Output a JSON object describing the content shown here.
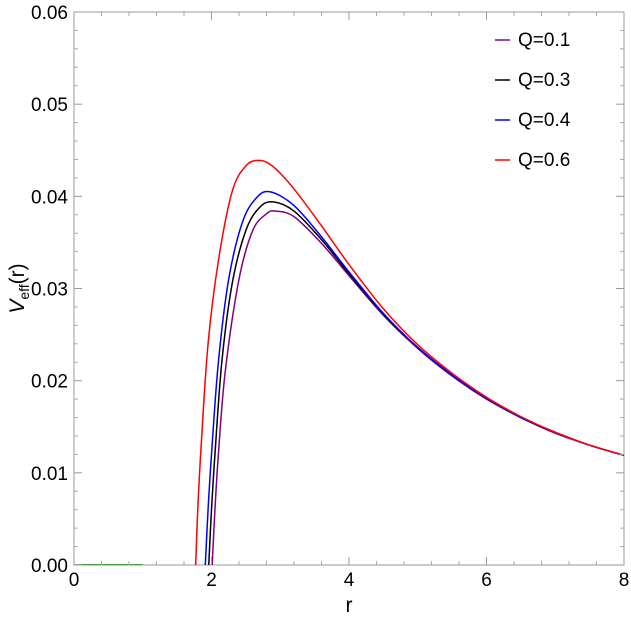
{
  "chart_data": {
    "type": "line",
    "xlabel": "r",
    "ylabel": {
      "main": "V",
      "sub": "eff",
      "arg": "(r)"
    },
    "xlim": [
      0,
      8
    ],
    "ylim": [
      0,
      0.06
    ],
    "xticks": [
      "0",
      "2",
      "4",
      "6",
      "8"
    ],
    "yticks": [
      "0.00",
      "0.01",
      "0.02",
      "0.03",
      "0.04",
      "0.05",
      "0.06"
    ],
    "grid": false,
    "legend_position": "top-right",
    "series": [
      {
        "name": "Q=0.1",
        "color": "#800080",
        "x": [
          2.01,
          2.05,
          2.1,
          2.2,
          2.4,
          2.6,
          2.8,
          2.93,
          3.2,
          3.6,
          4.0,
          4.5,
          5.0,
          5.5,
          6.0,
          6.5,
          7.0,
          7.5,
          8.0
        ],
        "y": [
          0.0,
          0.006,
          0.012,
          0.021,
          0.031,
          0.0363,
          0.0381,
          0.0384,
          0.0378,
          0.0349,
          0.0314,
          0.0271,
          0.0235,
          0.0205,
          0.018,
          0.016,
          0.0143,
          0.013,
          0.0119
        ]
      },
      {
        "name": "Q=0.3",
        "color": "#000000",
        "x": [
          1.96,
          2.0,
          2.05,
          2.15,
          2.3,
          2.5,
          2.7,
          2.9,
          3.2,
          3.6,
          4.0,
          4.5,
          5.0,
          5.5,
          6.0,
          6.5,
          7.0,
          7.5,
          8.0
        ],
        "y": [
          0.0,
          0.006,
          0.012,
          0.022,
          0.0305,
          0.0363,
          0.0388,
          0.0394,
          0.0384,
          0.0353,
          0.0316,
          0.0272,
          0.0236,
          0.0206,
          0.0181,
          0.016,
          0.0144,
          0.013,
          0.0119
        ]
      },
      {
        "name": "Q=0.4",
        "color": "#0000ff",
        "x": [
          1.91,
          1.95,
          2.0,
          2.1,
          2.25,
          2.45,
          2.65,
          2.85,
          3.2,
          3.6,
          4.0,
          4.5,
          5.0,
          5.5,
          6.0,
          6.5,
          7.0,
          7.5,
          8.0
        ],
        "y": [
          0.0,
          0.006,
          0.012,
          0.022,
          0.031,
          0.0372,
          0.0398,
          0.0405,
          0.039,
          0.0356,
          0.0318,
          0.0273,
          0.0236,
          0.0206,
          0.0181,
          0.016,
          0.0144,
          0.013,
          0.0119
        ]
      },
      {
        "name": "Q=0.6",
        "color": "#ff0000",
        "x": [
          1.77,
          1.8,
          1.85,
          1.95,
          2.1,
          2.3,
          2.5,
          2.7,
          2.9,
          3.2,
          3.6,
          4.0,
          4.5,
          5.0,
          5.5,
          6.0,
          6.5,
          7.0,
          7.5,
          8.0
        ],
        "y": [
          0.0,
          0.006,
          0.013,
          0.024,
          0.033,
          0.0405,
          0.0433,
          0.0439,
          0.0432,
          0.0408,
          0.0368,
          0.0326,
          0.0278,
          0.0239,
          0.0208,
          0.0182,
          0.0161,
          0.0144,
          0.013,
          0.0119
        ]
      },
      {
        "name": "",
        "color": "#008000",
        "x": [
          0.0,
          1.0
        ],
        "y": [
          0.0,
          0.0
        ]
      }
    ]
  }
}
